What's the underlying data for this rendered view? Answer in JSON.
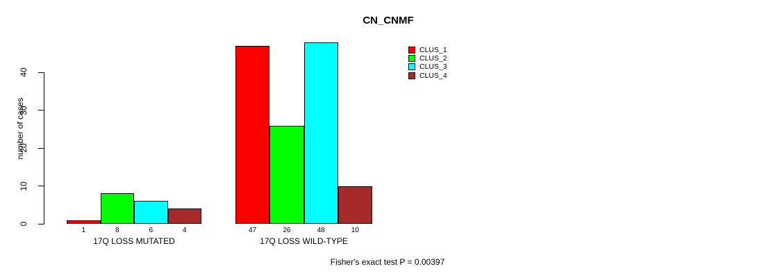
{
  "chart_data": {
    "type": "bar",
    "title": "CN_CNMF",
    "ylabel": "number of cases",
    "xlabel": "",
    "yticks": [
      0,
      10,
      20,
      30,
      40
    ],
    "ylim": [
      0,
      48
    ],
    "grid": false,
    "legend_position": "right-top",
    "categories": [
      "17Q LOSS MUTATED",
      "17Q LOSS WILD-TYPE"
    ],
    "series": [
      {
        "name": "CLUS_1",
        "color": "#FF0000",
        "values": [
          1,
          47
        ]
      },
      {
        "name": "CLUS_2",
        "color": "#00FF00",
        "values": [
          8,
          26
        ]
      },
      {
        "name": "CLUS_3",
        "color": "#00FFFF",
        "values": [
          6,
          48
        ]
      },
      {
        "name": "CLUS_4",
        "color": "#A52A2A",
        "values": [
          4,
          10
        ]
      }
    ],
    "groups": [
      {
        "label": "17Q LOSS MUTATED",
        "values": [
          1,
          8,
          6,
          4
        ]
      },
      {
        "label": "17Q LOSS WILD-TYPE",
        "values": [
          47,
          26,
          48,
          10
        ]
      }
    ],
    "bar_value_labels": [
      [
        "1",
        "8",
        "6",
        "4"
      ],
      [
        "47",
        "26",
        "48",
        "10"
      ]
    ],
    "footer": "Fisher's exact test P = 0.00397"
  },
  "colors": {
    "background": "#FFFFFF",
    "axis": "#000000",
    "bar_border": "#000000",
    "clus_1": "#FF0000",
    "clus_2": "#00FF00",
    "clus_3": "#00FFFF",
    "clus_4": "#A52A2A"
  },
  "legend": {
    "items": [
      {
        "label": "CLUS_1",
        "color": "#FF0000"
      },
      {
        "label": "CLUS_2",
        "color": "#00FF00"
      },
      {
        "label": "CLUS_3",
        "color": "#00FFFF"
      },
      {
        "label": "CLUS_4",
        "color": "#A52A2A"
      }
    ]
  }
}
